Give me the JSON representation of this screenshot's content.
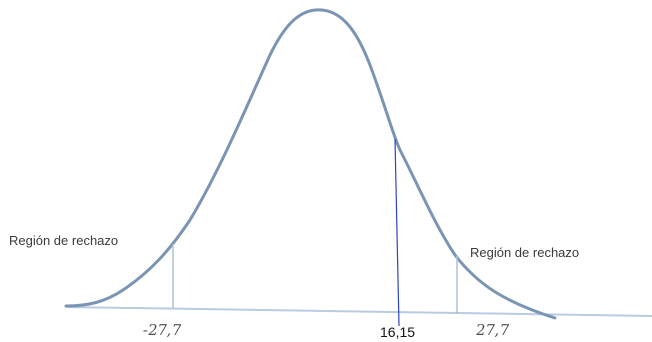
{
  "diagram": {
    "region_left_label": "Región de rechazo",
    "region_right_label": "Región de rechazo",
    "critical_left": "-27,7",
    "critical_right": "27,7",
    "test_statistic": "16,15",
    "colors": {
      "curve": "#7a94b3",
      "critical_lines": "#aec0d8",
      "baseline": "#b9cbe0",
      "statistic_line": "#2b44c8"
    }
  }
}
